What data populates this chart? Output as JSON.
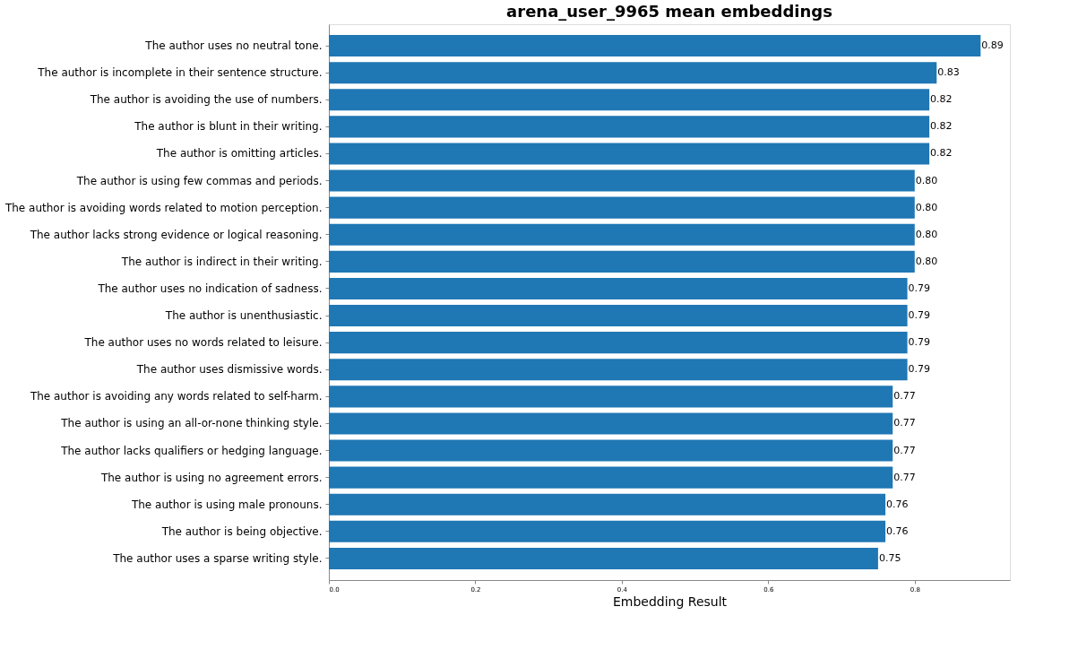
{
  "chart_data": {
    "type": "bar",
    "orientation": "horizontal",
    "title": "arena_user_9965 mean embeddings",
    "xlabel": "Embedding Result",
    "categories": [
      "The author uses no neutral tone.",
      "The author is incomplete in their sentence structure.",
      "The author is avoiding the use of numbers.",
      "The author is blunt in their writing.",
      "The author is omitting articles.",
      "The author is using few commas and periods.",
      "The author is avoiding words related to motion perception.",
      "The author lacks strong evidence or logical reasoning.",
      "The author is indirect in their writing.",
      "The author uses no indication of sadness.",
      "The author is unenthusiastic.",
      "The author uses no words related to leisure.",
      "The author uses dismissive words.",
      "The author is avoiding any words related to self-harm.",
      "The author is using an all-or-none thinking style.",
      "The author lacks qualifiers or hedging language.",
      "The author is using no agreement errors.",
      "The author is using male pronouns.",
      "The author is being objective.",
      "The author uses a sparse writing style."
    ],
    "values": [
      0.89,
      0.83,
      0.82,
      0.82,
      0.82,
      0.8,
      0.8,
      0.8,
      0.8,
      0.79,
      0.79,
      0.79,
      0.79,
      0.77,
      0.77,
      0.77,
      0.77,
      0.76,
      0.76,
      0.75
    ],
    "value_labels": [
      "0.89",
      "0.83",
      "0.82",
      "0.82",
      "0.82",
      "0.80",
      "0.80",
      "0.80",
      "0.80",
      "0.79",
      "0.79",
      "0.79",
      "0.79",
      "0.77",
      "0.77",
      "0.77",
      "0.77",
      "0.76",
      "0.76",
      "0.75"
    ],
    "color": "#1f77b4",
    "grid": false,
    "xlim": [
      0,
      0.93
    ],
    "xticks": [
      {
        "value": 0,
        "label": "0.0"
      },
      0.2,
      0.4,
      0.6,
      0.8
    ]
  }
}
